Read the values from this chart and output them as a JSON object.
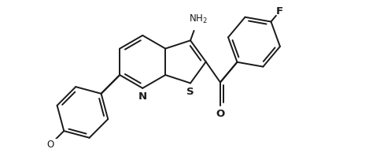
{
  "bg_color": "#ffffff",
  "line_color": "#1a1a1a",
  "lw": 1.4,
  "fs": 8.5,
  "figsize": [
    4.69,
    1.89
  ],
  "dpi": 100,
  "b": 0.38,
  "xlim": [
    -2.1,
    2.55
  ],
  "ylim": [
    -1.05,
    0.95
  ]
}
